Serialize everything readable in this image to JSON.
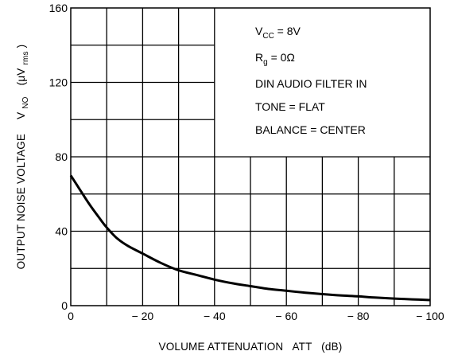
{
  "chart_data": {
    "type": "line",
    "title": "",
    "xlabel": "VOLUME ATTENUATION   ATT   (dB)",
    "ylabel": {
      "main": "OUTPUT NOISE VOLTAGE",
      "symbol": "V",
      "symbol_sub": "NO",
      "unit_open": "(μV",
      "unit_sub": "rms",
      "unit_close": ")"
    },
    "xlim": [
      0,
      -100
    ],
    "ylim": [
      0,
      160
    ],
    "x_ticks": [
      0,
      -20,
      -40,
      -60,
      -80,
      -100
    ],
    "x_tick_labels": [
      "0",
      "− 20",
      "− 40",
      "− 60",
      "− 80",
      "− 100"
    ],
    "y_ticks": [
      0,
      40,
      80,
      120,
      160
    ],
    "y_tick_labels": [
      "0",
      "40",
      "80",
      "120",
      "160"
    ],
    "grid": true,
    "x_grid_step": 10,
    "y_grid_step": 20,
    "series": [
      {
        "x": [
          0,
          -2,
          -5,
          -8,
          -10,
          -13,
          -16,
          -20,
          -25,
          -30,
          -35,
          -40,
          -45,
          -50,
          -55,
          -60,
          -65,
          -70,
          -75,
          -80,
          -85,
          -90,
          -95,
          -100
        ],
        "values": [
          70,
          64,
          55,
          47,
          42,
          36,
          32,
          28,
          23,
          19,
          16.5,
          14,
          12,
          10.5,
          9,
          8,
          7,
          6.2,
          5.5,
          5,
          4.3,
          3.8,
          3.4,
          3
        ],
        "color": "#000000"
      }
    ],
    "annotations": [
      {
        "main": "V",
        "sub": "CC",
        "rest": " = 8V"
      },
      {
        "main": "R",
        "sub": "g",
        "rest": " = 0Ω"
      },
      {
        "main": "DIN AUDIO FILTER IN",
        "sub": "",
        "rest": ""
      },
      {
        "main": "TONE = FLAT",
        "sub": "",
        "rest": ""
      },
      {
        "main": "BALANCE = CENTER",
        "sub": "",
        "rest": ""
      }
    ]
  }
}
